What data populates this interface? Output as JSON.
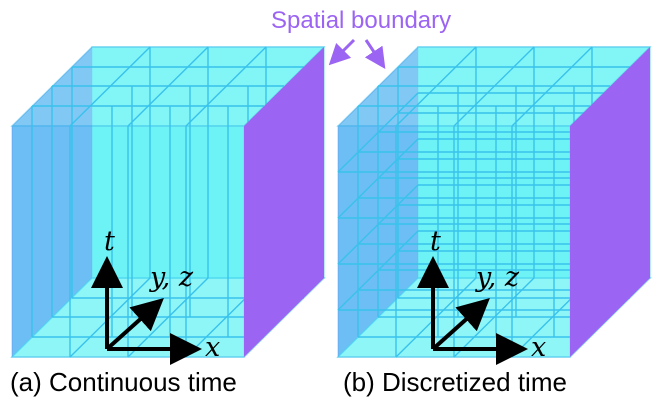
{
  "annotation": {
    "label": "Spatial boundary",
    "color": "#9b64f2"
  },
  "panels": [
    {
      "caption": "(a) Continuous time",
      "axes": {
        "t": "t",
        "yz": "y, z",
        "x": "x"
      }
    },
    {
      "caption": "(b) Discretized time",
      "axes": {
        "t": "t",
        "yz": "y, z",
        "x": "x"
      }
    }
  ],
  "colors": {
    "side_face": "#9b64f2",
    "volume_fill": "#43f0f4",
    "grid_line": "#38c2ec",
    "axis": "#000000"
  }
}
